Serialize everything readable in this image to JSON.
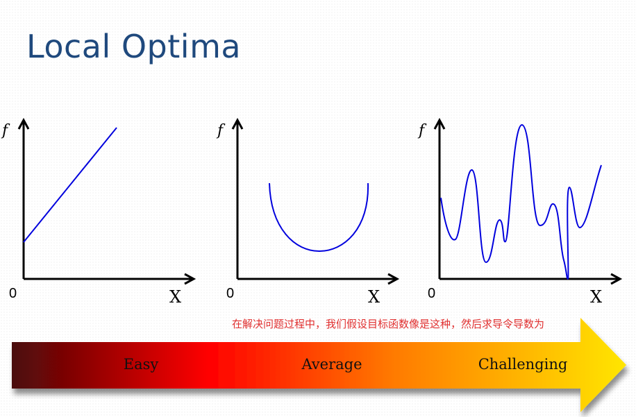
{
  "title": "Local Optima",
  "graphs": [
    {
      "y_label": "f",
      "origin": "0",
      "x_label": "X"
    },
    {
      "y_label": "f",
      "origin": "0",
      "x_label": "X"
    },
    {
      "y_label": "f",
      "origin": "0",
      "x_label": "X"
    }
  ],
  "note": "在解决问题过程中，我们假设目标函数像是这种，然后求导令导数为",
  "difficulty": {
    "levels": [
      "Easy",
      "Average",
      "Challenging"
    ],
    "colors": [
      "#4a0808",
      "#ff0000",
      "#ff8c00",
      "#ffe600"
    ]
  },
  "curve_color": "#0000dd"
}
